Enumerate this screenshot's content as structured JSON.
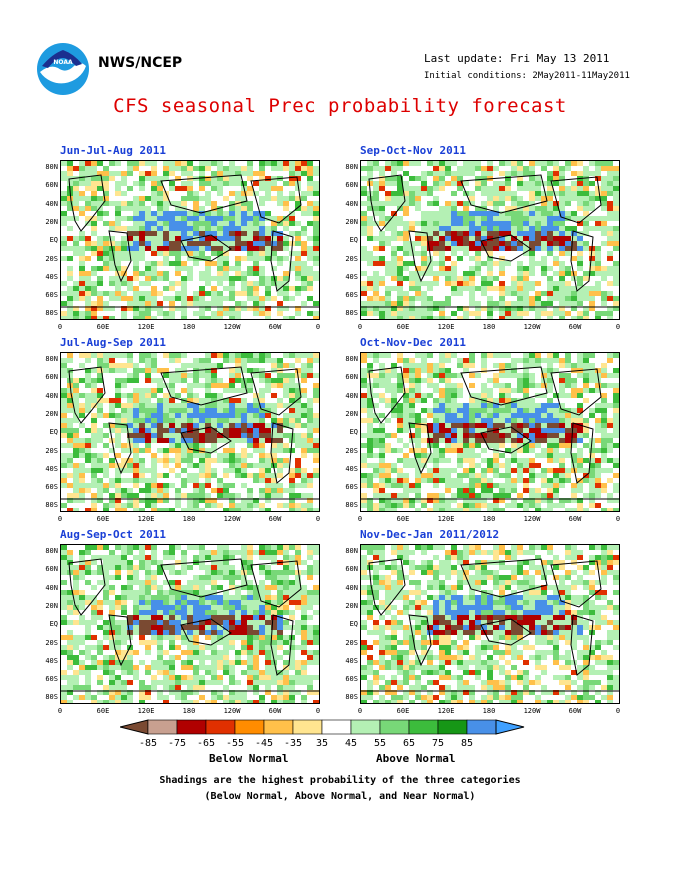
{
  "header": {
    "org": "NWS/NCEP",
    "last_update": "Last update: Fri May 13 2011",
    "initial_conditions": "Initial conditions: 2May2011-11May2011",
    "title": "CFS seasonal Prec probability forecast"
  },
  "panels": [
    {
      "title": "Jun-Jul-Aug 2011"
    },
    {
      "title": "Sep-Oct-Nov 2011"
    },
    {
      "title": "Jul-Aug-Sep 2011"
    },
    {
      "title": "Oct-Nov-Dec 2011"
    },
    {
      "title": "Aug-Sep-Oct 2011"
    },
    {
      "title": "Nov-Dec-Jan 2011/2012"
    }
  ],
  "map_axes": {
    "lat_labels": [
      "80N",
      "60N",
      "40N",
      "20N",
      "EQ",
      "20S",
      "40S",
      "60S",
      "80S"
    ],
    "lon_labels": [
      "0",
      "60E",
      "120E",
      "180",
      "120W",
      "60W",
      "0"
    ]
  },
  "colorbar": {
    "labels": [
      "-85",
      "-75",
      "-65",
      "-55",
      "-45",
      "-35",
      "35",
      "45",
      "55",
      "65",
      "75",
      "85"
    ],
    "colors": [
      "#7a4a32",
      "#c8a090",
      "#b00000",
      "#e03000",
      "#ff8c00",
      "#ffc04a",
      "#ffe590",
      "#ffffff",
      "#b4f0b4",
      "#78d878",
      "#3cbc3c",
      "#169616",
      "#4890e8",
      "#3fa0ff"
    ],
    "below_label": "Below Normal",
    "above_label": "Above Normal"
  },
  "footnote": {
    "line1": "Shadings are the highest probability of the three categories",
    "line2": "(Below Normal, Above Normal, and Near Normal)"
  }
}
